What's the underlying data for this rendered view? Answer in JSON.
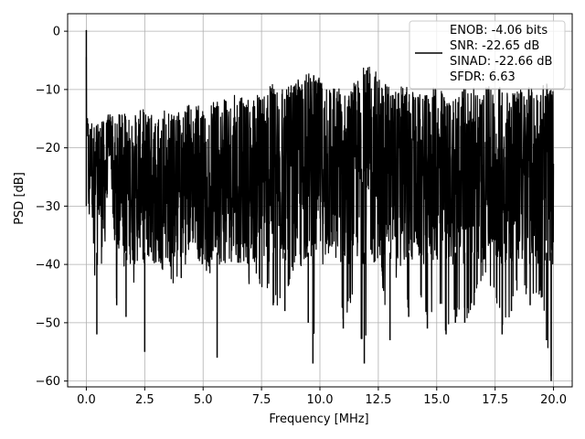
{
  "chart_data": {
    "type": "line",
    "title": "",
    "xlabel": "Frequency [MHz]",
    "ylabel": "PSD [dB]",
    "xlim": [
      -0.8,
      20.8
    ],
    "ylim": [
      -61,
      3
    ],
    "xticks": [
      0.0,
      2.5,
      5.0,
      7.5,
      10.0,
      12.5,
      15.0,
      17.5,
      20.0
    ],
    "xtick_labels": [
      "0.0",
      "2.5",
      "5.0",
      "7.5",
      "10.0",
      "12.5",
      "15.0",
      "17.5",
      "20.0"
    ],
    "yticks": [
      0,
      -10,
      -20,
      -30,
      -40,
      -50,
      -60
    ],
    "ytick_labels": [
      "0",
      "−10",
      "−20",
      "−30",
      "−40",
      "−50",
      "−60"
    ],
    "grid": true,
    "legend_position": "top-right",
    "legend": [
      "ENOB: -4.06 bits",
      "SNR: -22.65 dB",
      "SINAD: -22.66 dB",
      "SFDR: 6.63"
    ],
    "line_color": "#000000",
    "grid_color": "#b0b0b0",
    "series": [
      {
        "x": [
          0.0,
          0.02,
          0.05,
          0.1,
          0.2,
          0.35,
          0.45,
          0.5,
          0.7,
          1.0,
          1.3,
          1.5,
          1.7,
          2.0,
          2.4,
          2.5,
          2.7,
          3.0,
          3.5,
          4.0,
          4.5,
          4.9,
          5.3,
          5.6,
          6.0,
          6.5,
          7.0,
          7.5,
          8.0,
          8.5,
          9.0,
          9.5,
          9.7,
          9.9,
          10.3,
          10.6,
          11.0,
          11.5,
          11.9,
          12.2,
          12.5,
          13.0,
          13.4,
          13.8,
          14.2,
          14.6,
          15.0,
          15.4,
          15.8,
          16.2,
          16.6,
          17.0,
          17.4,
          17.8,
          18.2,
          18.6,
          19.0,
          19.4,
          19.7,
          19.9,
          20.0
        ],
        "y": [
          0.2,
          -20,
          -15,
          -38,
          -25,
          -43,
          -52,
          -30,
          -45,
          -20,
          -47,
          -30,
          -49,
          -45,
          -35,
          -55,
          -44,
          -40,
          -42,
          -45,
          -37,
          -40,
          -42,
          -56,
          -38,
          -42,
          -45,
          -44,
          -47,
          -48,
          -38,
          -50,
          -57,
          -45,
          -40,
          -39,
          -51,
          -45,
          -57,
          -42,
          -39,
          -53,
          -41,
          -49,
          -44,
          -51,
          -45,
          -52,
          -50,
          -50,
          -47,
          -42,
          -45,
          -52,
          -48,
          -43,
          -47,
          -45,
          -53,
          -60,
          -38
        ],
        "peaks": [
          [
            0.2,
            -15
          ],
          [
            0.5,
            -16
          ],
          [
            1.0,
            -14
          ],
          [
            1.5,
            -14
          ],
          [
            2.0,
            -14.5
          ],
          [
            2.5,
            -13
          ],
          [
            3.0,
            -15
          ],
          [
            3.5,
            -13
          ],
          [
            4.0,
            -14
          ],
          [
            4.5,
            -12
          ],
          [
            5.0,
            -13
          ],
          [
            5.5,
            -12
          ],
          [
            6.0,
            -11
          ],
          [
            6.5,
            -11
          ],
          [
            7.0,
            -12
          ],
          [
            7.5,
            -10
          ],
          [
            8.0,
            -9
          ],
          [
            8.5,
            -10
          ],
          [
            9.0,
            -8.5
          ],
          [
            9.6,
            -7
          ],
          [
            10.0,
            -8
          ],
          [
            10.5,
            -9
          ],
          [
            11.0,
            -10
          ],
          [
            11.5,
            -8.5
          ],
          [
            11.9,
            -6
          ],
          [
            12.4,
            -6
          ],
          [
            12.8,
            -9
          ],
          [
            13.2,
            -10
          ],
          [
            13.6,
            -9
          ],
          [
            14.0,
            -10.5
          ],
          [
            14.5,
            -11
          ],
          [
            15.0,
            -9
          ],
          [
            15.5,
            -11
          ],
          [
            16.0,
            -10.5
          ],
          [
            16.4,
            -9
          ],
          [
            17.0,
            -10
          ],
          [
            17.4,
            -9
          ],
          [
            18.0,
            -9.5
          ],
          [
            18.5,
            -10
          ],
          [
            19.0,
            -9.5
          ],
          [
            19.6,
            -9
          ]
        ]
      }
    ]
  }
}
